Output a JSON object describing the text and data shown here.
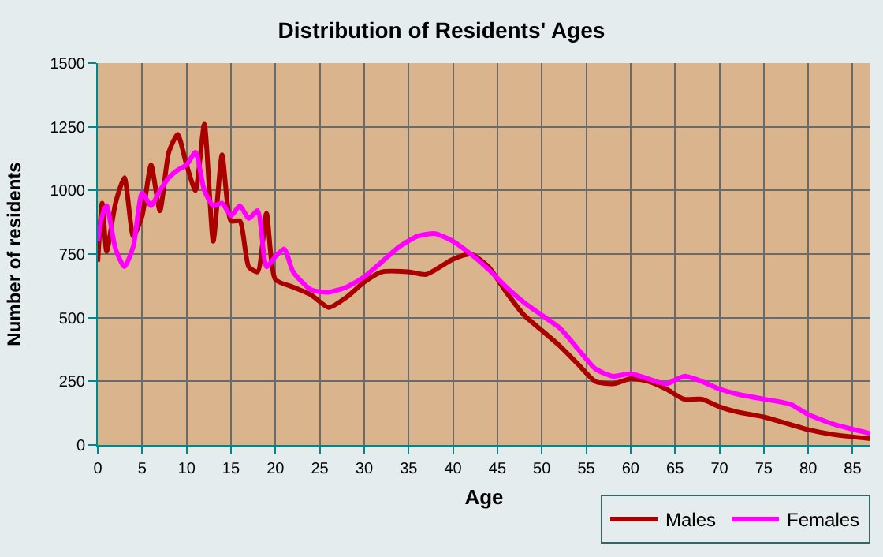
{
  "chart_data": {
    "type": "line",
    "title": "Distribution of Residents' Ages",
    "xlabel": "Age",
    "ylabel": "Number of residents",
    "xlim": [
      0,
      87
    ],
    "xticks": [
      0,
      5,
      10,
      15,
      20,
      25,
      30,
      35,
      40,
      45,
      50,
      55,
      60,
      65,
      70,
      75,
      80,
      85
    ],
    "ylim": [
      0,
      1500
    ],
    "yticks": [
      0,
      250,
      500,
      750,
      1000,
      1250,
      1500
    ],
    "grid": true,
    "legend": "bottom right",
    "marker": "none",
    "line_style": "solid",
    "series": [
      {
        "name": "Males",
        "color": "#aa0000",
        "x": [
          0,
          0.5,
          1,
          2,
          3,
          4,
          5,
          6,
          7,
          8,
          9,
          10,
          11,
          12,
          13,
          14,
          15,
          16,
          17,
          18,
          19,
          20,
          22,
          24,
          26,
          28,
          30,
          32,
          35,
          37,
          40,
          42,
          44,
          46,
          48,
          50,
          52,
          54,
          56,
          58,
          60,
          62,
          64,
          66,
          68,
          70,
          72,
          75,
          78,
          80,
          83,
          87
        ],
        "values": [
          720,
          950,
          760,
          950,
          1050,
          820,
          900,
          1100,
          920,
          1150,
          1220,
          1100,
          1000,
          1260,
          800,
          1140,
          880,
          880,
          700,
          680,
          910,
          650,
          620,
          590,
          540,
          580,
          640,
          680,
          680,
          670,
          730,
          750,
          700,
          600,
          510,
          450,
          390,
          320,
          250,
          240,
          260,
          250,
          220,
          180,
          180,
          150,
          130,
          110,
          80,
          60,
          40,
          25
        ]
      },
      {
        "name": "Females",
        "color": "#ff00ff",
        "x": [
          0,
          0.5,
          1,
          2,
          3,
          4,
          5,
          6,
          7,
          8,
          9,
          10,
          11,
          12,
          13,
          14,
          15,
          16,
          17,
          18,
          19,
          20,
          21,
          22,
          24,
          26,
          28,
          30,
          32,
          34,
          36,
          38,
          40,
          42,
          44,
          46,
          48,
          50,
          52,
          54,
          56,
          58,
          60,
          62,
          64,
          66,
          68,
          70,
          72,
          75,
          78,
          80,
          83,
          87
        ],
        "values": [
          800,
          900,
          940,
          770,
          700,
          780,
          990,
          940,
          1000,
          1050,
          1080,
          1100,
          1150,
          1000,
          940,
          950,
          900,
          940,
          890,
          920,
          700,
          740,
          770,
          680,
          610,
          600,
          620,
          660,
          720,
          780,
          820,
          830,
          800,
          750,
          690,
          620,
          560,
          510,
          460,
          380,
          300,
          270,
          280,
          260,
          240,
          270,
          250,
          220,
          200,
          180,
          160,
          120,
          80,
          45
        ]
      }
    ]
  }
}
